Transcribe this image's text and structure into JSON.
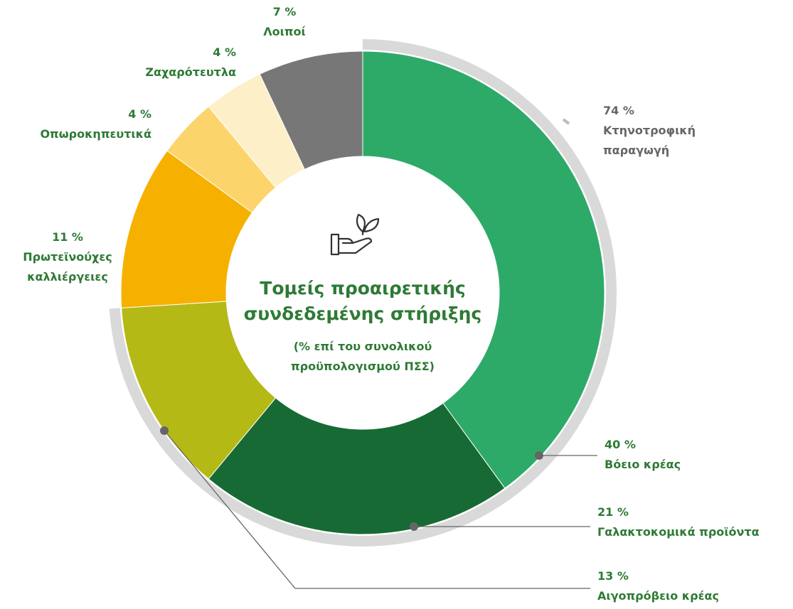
{
  "chart_data": {
    "type": "donut",
    "title": [
      "Τομείς προαιρετικής",
      "συνδεδεμένης στήριξης"
    ],
    "subtitle": [
      "(% επί του συνολικού",
      "προϋπολογισμού ΠΣΣ)"
    ],
    "categories": [
      "Βόειο κρέας",
      "Γαλακτοκομικά προϊόντα",
      "Αιγοπρόβειο κρέας",
      "Πρωτεϊνούχες καλλιέργειες",
      "Οπωροκηπευτικά",
      "Ζαχαρότευτλα",
      "Λοιποί"
    ],
    "values": [
      40,
      21,
      13,
      11,
      4,
      4,
      7
    ],
    "value_labels": [
      "40 %",
      "21 %",
      "13 %",
      "11 %",
      "4 %",
      "4 %",
      "7 %"
    ],
    "colors": [
      "#2eaa68",
      "#176a34",
      "#b5b915",
      "#f6b100",
      "#fcd46c",
      "#fdf0c9",
      "#777777"
    ],
    "outer": {
      "name": "Κτηνοτροφική παραγωγή",
      "value": 74,
      "value_label": "74 %",
      "color": "#d9d9d9"
    }
  }
}
